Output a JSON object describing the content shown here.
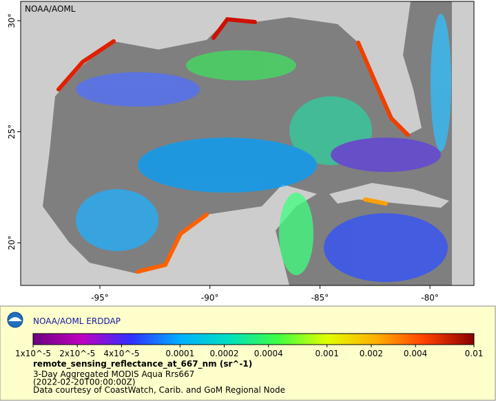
{
  "chart_data": {
    "type": "map",
    "watermark": "NOAA/AOML",
    "xlim": [
      -98.6,
      -78.0
    ],
    "ylim": [
      18.08,
      30.87
    ],
    "xticks": [
      {
        "value": -95,
        "label": "-95°"
      },
      {
        "value": -90,
        "label": "-90°"
      },
      {
        "value": -85,
        "label": "-85°"
      },
      {
        "value": -80,
        "label": "-80°"
      }
    ],
    "yticks": [
      {
        "value": 20,
        "label": "20°"
      },
      {
        "value": 25,
        "label": "25°"
      },
      {
        "value": 30,
        "label": "30°"
      }
    ],
    "legend": {
      "title": "NOAA/AOML ERDDAP",
      "variable": "remote_sensing_reflectance_at_667_nm (sr^-1)",
      "lines": [
        "3-Day Aggregated MODIS Aqua Rrs667",
        "(2022-02-20T00:00:00Z)",
        "Data courtesy of CoastWatch, Carib. and GoM Regional Node"
      ],
      "log_scale": true,
      "clim": [
        1e-05,
        0.01
      ],
      "colors": [
        "#6a0080",
        "#c000c0",
        "#3030ff",
        "#00b0ff",
        "#00e0c0",
        "#40ff40",
        "#e0ff00",
        "#ffb000",
        "#ff4000",
        "#8a0000"
      ],
      "ticks": [
        {
          "value": 1e-05,
          "label": "1x10^-5"
        },
        {
          "value": 2e-05,
          "label": "2x10^-5"
        },
        {
          "value": 4e-05,
          "label": "4x10^-5"
        },
        0.0001,
        0.0002,
        0.0004,
        0.001,
        0.002,
        0.004,
        0.01
      ]
    }
  }
}
